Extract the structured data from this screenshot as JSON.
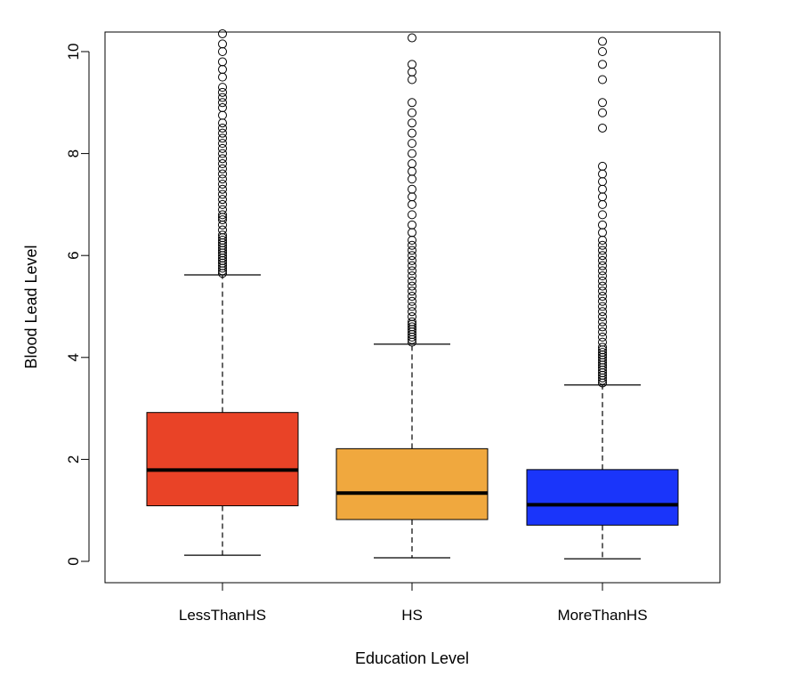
{
  "chart_data": {
    "type": "boxplot",
    "xlabel": "Education Level",
    "ylabel": "Blood Lead Level",
    "ylim": [
      -0.4,
      10.4
    ],
    "yticks": [
      0,
      2,
      4,
      6,
      8,
      10
    ],
    "grid": false,
    "legend": "none",
    "categories": [
      "LessThanHS",
      "HS",
      "MoreThanHS"
    ],
    "colors": [
      "#E94327",
      "#F0A83E",
      "#1A35FA"
    ],
    "boxes": [
      {
        "category": "LessThanHS",
        "whisker_low": 0.12,
        "q1": 1.09,
        "median": 1.79,
        "q3": 2.92,
        "whisker_high": 5.62,
        "outliers": [
          5.65,
          5.7,
          5.75,
          5.8,
          5.85,
          5.9,
          5.95,
          6.0,
          6.05,
          6.1,
          6.15,
          6.2,
          6.25,
          6.3,
          6.35,
          6.4,
          6.5,
          6.6,
          6.7,
          6.75,
          6.8,
          6.9,
          7.0,
          7.1,
          7.2,
          7.3,
          7.4,
          7.5,
          7.6,
          7.7,
          7.8,
          7.9,
          8.0,
          8.1,
          8.2,
          8.3,
          8.4,
          8.5,
          8.6,
          8.75,
          8.9,
          9.0,
          9.1,
          9.2,
          9.3,
          9.5,
          9.65,
          9.8,
          10.0,
          10.15,
          10.35
        ]
      },
      {
        "category": "HS",
        "whisker_low": 0.07,
        "q1": 0.82,
        "median": 1.34,
        "q3": 2.21,
        "whisker_high": 4.26,
        "outliers": [
          4.3,
          4.35,
          4.4,
          4.45,
          4.5,
          4.55,
          4.6,
          4.65,
          4.7,
          4.8,
          4.9,
          5.0,
          5.1,
          5.2,
          5.3,
          5.4,
          5.5,
          5.6,
          5.7,
          5.8,
          5.9,
          6.0,
          6.1,
          6.2,
          6.3,
          6.45,
          6.6,
          6.8,
          7.0,
          7.15,
          7.3,
          7.5,
          7.65,
          7.8,
          8.0,
          8.2,
          8.4,
          8.6,
          8.8,
          9.0,
          9.45,
          9.6,
          9.75,
          10.27
        ]
      },
      {
        "category": "MoreThanHS",
        "whisker_low": 0.05,
        "q1": 0.71,
        "median": 1.11,
        "q3": 1.8,
        "whisker_high": 3.46,
        "outliers": [
          3.5,
          3.55,
          3.6,
          3.65,
          3.7,
          3.75,
          3.8,
          3.85,
          3.9,
          3.95,
          4.0,
          4.05,
          4.1,
          4.15,
          4.2,
          4.3,
          4.4,
          4.5,
          4.6,
          4.7,
          4.8,
          4.9,
          5.0,
          5.1,
          5.2,
          5.3,
          5.4,
          5.5,
          5.6,
          5.7,
          5.8,
          5.9,
          6.0,
          6.1,
          6.2,
          6.3,
          6.45,
          6.6,
          6.8,
          7.0,
          7.15,
          7.3,
          7.45,
          7.6,
          7.75,
          8.5,
          8.8,
          9.0,
          9.45,
          9.75,
          10.0,
          10.2
        ]
      }
    ]
  }
}
